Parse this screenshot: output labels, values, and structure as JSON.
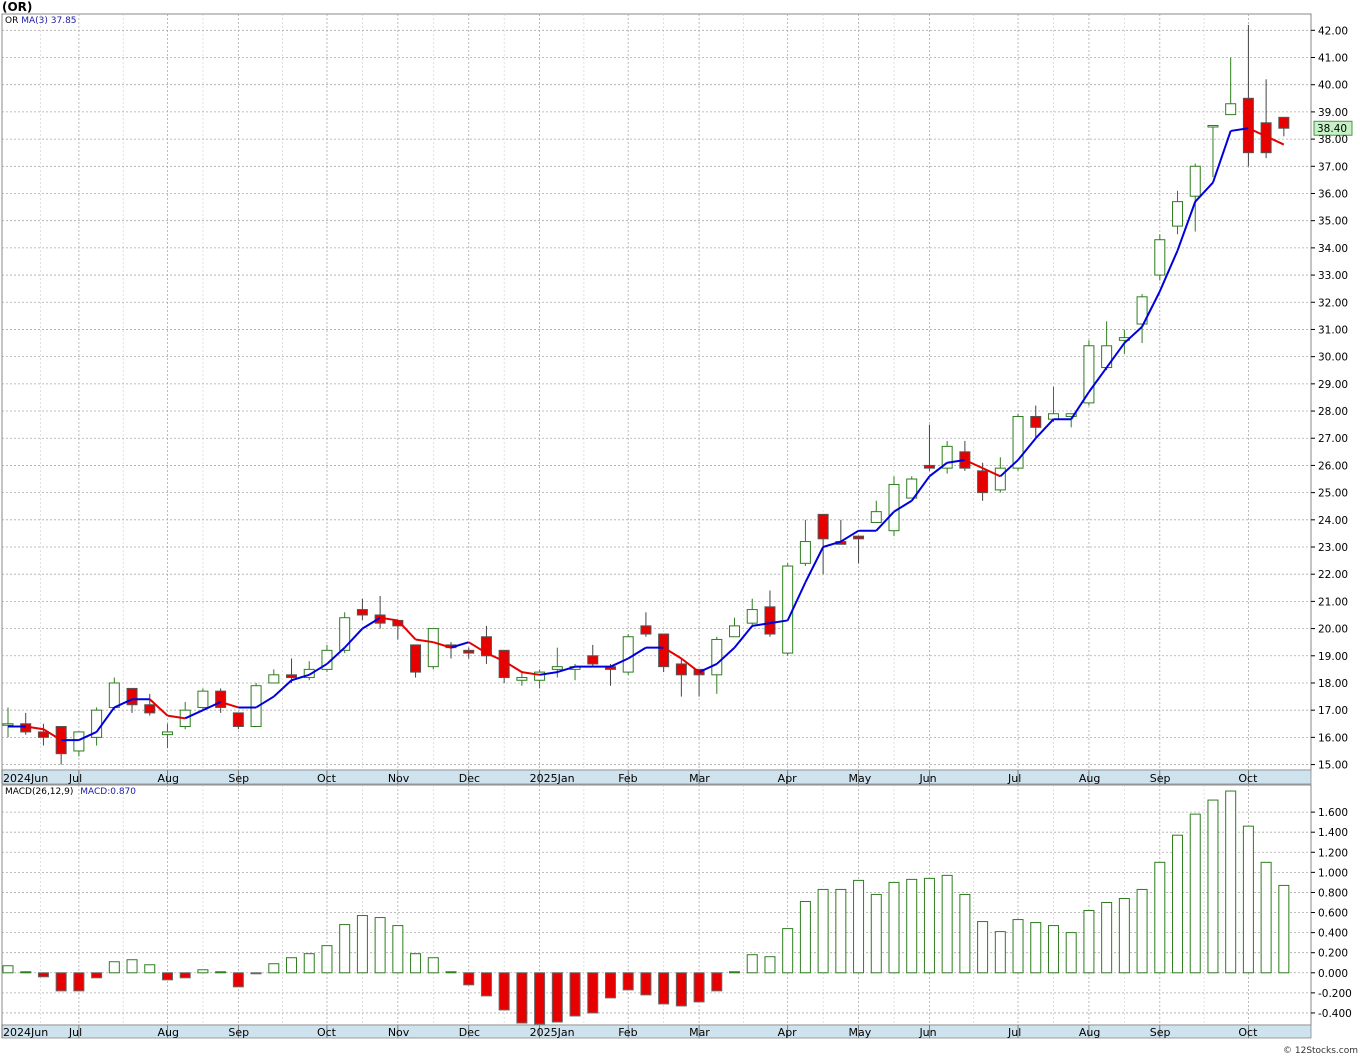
{
  "header": {
    "title": "(OR)",
    "ticker_label": "OR",
    "ma_label": "MA(3)",
    "ma_value": "37.85",
    "macd_label": "MACD(26,12,9)",
    "macd_value_label": "MACD:0.870",
    "credit": "© 12Stocks.com",
    "last_price_tag": "38.40"
  },
  "colors": {
    "up": "#2e7d1f",
    "down": "#e60000",
    "ma_line": "#0000dd",
    "ma_down": "#e60000",
    "grid": "#aaaaaa",
    "axis_bar": "#cfe3ee",
    "price_tag_bg": "#c6f0c6"
  },
  "chart_data": [
    {
      "type": "candlestick",
      "name": "price",
      "ylim": [
        14.8,
        42.6
      ],
      "y_ticks": [
        "15.00",
        "16.00",
        "17.00",
        "18.00",
        "19.00",
        "20.00",
        "21.00",
        "22.00",
        "23.00",
        "24.00",
        "25.00",
        "26.00",
        "27.00",
        "28.00",
        "29.00",
        "30.00",
        "31.00",
        "32.00",
        "33.00",
        "34.00",
        "35.00",
        "36.00",
        "37.00",
        "38.00",
        "39.00",
        "40.00",
        "41.00",
        "42.00"
      ],
      "x_labels": [
        "2024Jun",
        "Jul",
        "Aug",
        "Sep",
        "Oct",
        "Nov",
        "Dec",
        "2025Jan",
        "Feb",
        "Mar",
        "Apr",
        "May",
        "Jun",
        "Jul",
        "Aug",
        "Sep",
        "Oct"
      ],
      "series": [
        {
          "name": "OR",
          "candles": [
            [
              16.5,
              16.5,
              17.1,
              16.0
            ],
            [
              16.5,
              16.2,
              16.9,
              16.1
            ],
            [
              16.2,
              16.0,
              16.5,
              15.7
            ],
            [
              16.4,
              15.4,
              16.4,
              15.0
            ],
            [
              15.5,
              16.2,
              16.2,
              15.3
            ],
            [
              16.0,
              17.0,
              17.1,
              15.7
            ],
            [
              17.1,
              18.0,
              18.2,
              17.0
            ],
            [
              17.8,
              17.2,
              17.8,
              16.9
            ],
            [
              17.2,
              16.9,
              17.6,
              16.8
            ],
            [
              16.1,
              16.2,
              16.5,
              15.6
            ],
            [
              16.4,
              17.0,
              17.3,
              16.3
            ],
            [
              17.1,
              17.7,
              17.8,
              17.0
            ],
            [
              17.7,
              17.1,
              17.8,
              16.9
            ],
            [
              16.9,
              16.4,
              16.9,
              16.3
            ],
            [
              16.4,
              17.9,
              18.0,
              16.4
            ],
            [
              18.0,
              18.3,
              18.5,
              18.0
            ],
            [
              18.3,
              18.2,
              18.9,
              18.0
            ],
            [
              18.2,
              18.5,
              18.8,
              18.1
            ],
            [
              18.5,
              19.2,
              19.4,
              18.4
            ],
            [
              19.2,
              20.4,
              20.6,
              19.1
            ],
            [
              20.7,
              20.5,
              21.1,
              20.3
            ],
            [
              20.5,
              20.2,
              21.2,
              20.0
            ],
            [
              20.3,
              20.1,
              20.3,
              19.6
            ],
            [
              19.4,
              18.4,
              19.4,
              18.2
            ],
            [
              18.6,
              20.0,
              20.0,
              18.5
            ],
            [
              19.4,
              19.3,
              19.5,
              18.9
            ],
            [
              19.2,
              19.1,
              19.3,
              18.9
            ],
            [
              19.7,
              19.0,
              20.1,
              18.7
            ],
            [
              19.2,
              18.2,
              19.2,
              18.0
            ],
            [
              18.1,
              18.2,
              18.4,
              17.9
            ],
            [
              18.1,
              18.4,
              18.5,
              17.8
            ],
            [
              18.5,
              18.6,
              19.3,
              18.2
            ],
            [
              18.5,
              18.6,
              18.7,
              18.1
            ],
            [
              19.0,
              18.7,
              19.4,
              18.6
            ],
            [
              18.6,
              18.5,
              18.7,
              17.9
            ],
            [
              18.4,
              19.7,
              19.8,
              18.3
            ],
            [
              20.1,
              19.8,
              20.6,
              19.7
            ],
            [
              19.8,
              18.6,
              19.8,
              18.4
            ],
            [
              18.7,
              18.3,
              18.9,
              17.5
            ],
            [
              18.5,
              18.3,
              18.5,
              17.5
            ],
            [
              18.3,
              19.6,
              19.7,
              17.6
            ],
            [
              19.7,
              20.1,
              20.4,
              19.7
            ],
            [
              20.2,
              20.7,
              21.1,
              20.1
            ],
            [
              20.8,
              19.8,
              21.4,
              19.7
            ],
            [
              19.1,
              22.3,
              22.4,
              19.0
            ],
            [
              22.4,
              23.2,
              24.0,
              22.3
            ],
            [
              24.2,
              23.3,
              24.2,
              22.0
            ],
            [
              23.2,
              23.1,
              24.0,
              23.1
            ],
            [
              23.4,
              23.3,
              23.4,
              22.4
            ],
            [
              23.9,
              24.3,
              24.7,
              23.9
            ],
            [
              23.6,
              25.3,
              25.6,
              23.4
            ],
            [
              24.8,
              25.5,
              25.6,
              24.8
            ],
            [
              26.0,
              25.9,
              27.5,
              25.8
            ],
            [
              25.9,
              26.7,
              26.9,
              25.7
            ],
            [
              26.5,
              25.9,
              26.9,
              25.8
            ],
            [
              25.8,
              25.0,
              26.1,
              24.7
            ],
            [
              25.1,
              25.9,
              26.3,
              25.0
            ],
            [
              25.9,
              27.8,
              27.9,
              25.8
            ],
            [
              27.8,
              27.4,
              28.2,
              27.0
            ],
            [
              27.7,
              27.9,
              28.9,
              27.6
            ],
            [
              27.8,
              27.9,
              27.9,
              27.4
            ],
            [
              28.3,
              30.4,
              30.6,
              28.2
            ],
            [
              29.6,
              30.4,
              31.3,
              29.5
            ],
            [
              30.6,
              30.7,
              31.0,
              30.1
            ],
            [
              31.2,
              32.2,
              32.3,
              30.5
            ],
            [
              33.0,
              34.3,
              34.5,
              32.8
            ],
            [
              34.8,
              35.7,
              36.1,
              34.5
            ],
            [
              35.9,
              37.0,
              37.1,
              34.6
            ],
            [
              38.5,
              38.5,
              38.5,
              36.6
            ],
            [
              38.9,
              39.3,
              41.0,
              38.9
            ],
            [
              39.5,
              37.5,
              42.2,
              37.0
            ],
            [
              38.6,
              37.5,
              40.2,
              37.3
            ],
            [
              38.8,
              38.4,
              38.8,
              38.1
            ]
          ]
        },
        {
          "name": "MA(3)",
          "values": [
            16.4,
            16.4,
            16.3,
            15.9,
            15.9,
            16.2,
            17.1,
            17.4,
            17.4,
            16.8,
            16.7,
            17.0,
            17.3,
            17.1,
            17.1,
            17.5,
            18.1,
            18.3,
            18.7,
            19.3,
            20.0,
            20.4,
            20.3,
            19.6,
            19.5,
            19.3,
            19.5,
            19.1,
            18.8,
            18.4,
            18.3,
            18.4,
            18.6,
            18.6,
            18.6,
            18.9,
            19.3,
            19.3,
            18.9,
            18.4,
            18.7,
            19.3,
            20.1,
            20.2,
            20.3,
            21.7,
            23.0,
            23.2,
            23.6,
            23.6,
            24.3,
            24.7,
            25.6,
            26.1,
            26.2,
            25.9,
            25.6,
            26.2,
            27.0,
            27.7,
            27.7,
            28.7,
            29.6,
            30.5,
            31.1,
            32.4,
            33.9,
            35.7,
            36.4,
            38.3,
            38.4,
            38.1,
            37.8
          ]
        }
      ]
    },
    {
      "type": "bar",
      "name": "macd",
      "ylim": [
        -0.52,
        1.87
      ],
      "y_ticks": [
        "-0.400",
        "-0.200",
        "0.000",
        "0.200",
        "0.400",
        "0.600",
        "0.800",
        "1.000",
        "1.200",
        "1.400",
        "1.600"
      ],
      "x_labels": [
        "2024Jun",
        "Jul",
        "Aug",
        "Sep",
        "Oct",
        "Nov",
        "Dec",
        "2025Jan",
        "Feb",
        "Mar",
        "Apr",
        "May",
        "Jun",
        "Jul",
        "Aug",
        "Sep",
        "Oct"
      ],
      "series": [
        {
          "name": "MACD(26,12,9)",
          "values": [
            0.07,
            0.01,
            -0.04,
            -0.18,
            -0.18,
            -0.05,
            0.11,
            0.13,
            0.08,
            -0.07,
            -0.05,
            0.03,
            0.01,
            -0.14,
            -0.01,
            0.09,
            0.15,
            0.19,
            0.27,
            0.48,
            0.57,
            0.55,
            0.47,
            0.19,
            0.15,
            0.01,
            -0.12,
            -0.23,
            -0.37,
            -0.5,
            -0.51,
            -0.49,
            -0.43,
            -0.4,
            -0.25,
            -0.17,
            -0.22,
            -0.31,
            -0.33,
            -0.29,
            -0.18,
            0.01,
            0.18,
            0.16,
            0.44,
            0.71,
            0.83,
            0.83,
            0.92,
            0.78,
            0.9,
            0.93,
            0.94,
            0.97,
            0.78,
            0.51,
            0.41,
            0.53,
            0.5,
            0.47,
            0.4,
            0.62,
            0.7,
            0.74,
            0.83,
            1.1,
            1.37,
            1.58,
            1.72,
            1.81,
            1.46,
            1.1,
            0.87
          ]
        }
      ]
    }
  ]
}
